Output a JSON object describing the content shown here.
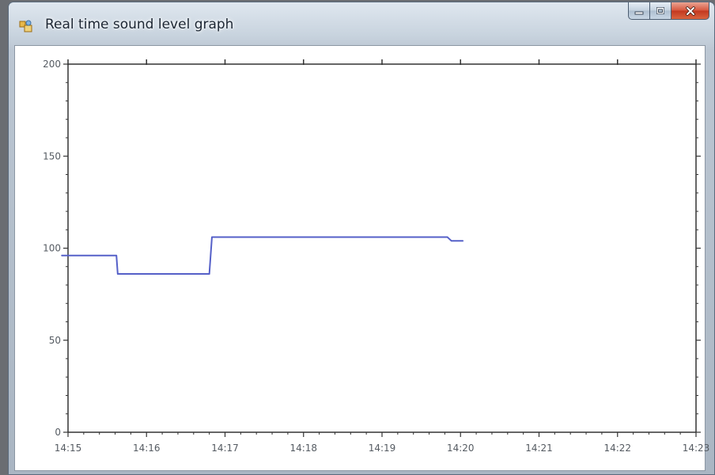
{
  "window": {
    "title": "Real time sound level graph",
    "icon": "app-icon",
    "buttons": {
      "minimize": "minimize-icon",
      "maximize": "maximize-icon",
      "close": "close-icon"
    }
  },
  "colors": {
    "series": "#5560c8",
    "axis": "#333333",
    "close_button": "#c9452a"
  },
  "chart_data": {
    "type": "line",
    "title": "",
    "xlabel": "",
    "ylabel": "",
    "x_unit": "time (HH:MM)",
    "xlim": [
      "14:15",
      "14:23"
    ],
    "ylim": [
      0,
      200
    ],
    "x_ticks": [
      "14:15",
      "14:16",
      "14:17",
      "14:18",
      "14:19",
      "14:20",
      "14:21",
      "14:22",
      "14:23"
    ],
    "y_ticks": [
      "0",
      "50",
      "100",
      "150",
      "200"
    ],
    "grid": false,
    "series": [
      {
        "x": [
          "14:14:55",
          "14:15:37",
          "14:15:38",
          "14:16:48",
          "14:16:50",
          "14:19:50",
          "14:19:53",
          "14:20:02"
        ],
        "y": [
          96,
          96,
          86,
          86,
          106,
          106,
          104,
          104
        ]
      }
    ]
  }
}
